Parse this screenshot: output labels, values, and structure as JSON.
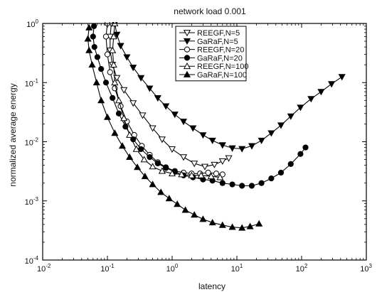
{
  "chart_data": {
    "type": "line",
    "title": "network load 0.001",
    "xlabel": "latency",
    "ylabel": "normalized average energy",
    "x_scale": "log",
    "y_scale": "log",
    "xlim": [
      0.01,
      1000
    ],
    "ylim": [
      0.0001,
      1
    ],
    "x_ticks": [
      {
        "base": "10",
        "exp": "-2",
        "value": 0.01
      },
      {
        "base": "10",
        "exp": "-1",
        "value": 0.1
      },
      {
        "base": "10",
        "exp": "0",
        "value": 1
      },
      {
        "base": "10",
        "exp": "1",
        "value": 10
      },
      {
        "base": "10",
        "exp": "2",
        "value": 100
      },
      {
        "base": "10",
        "exp": "3",
        "value": 1000
      }
    ],
    "y_ticks": [
      {
        "base": "10",
        "exp": "-4",
        "value": 0.0001
      },
      {
        "base": "10",
        "exp": "-3",
        "value": 0.001
      },
      {
        "base": "10",
        "exp": "-2",
        "value": 0.01
      },
      {
        "base": "10",
        "exp": "-1",
        "value": 0.1
      },
      {
        "base": "10",
        "exp": "0",
        "value": 1
      }
    ],
    "grid": false,
    "legend_position": "top-center",
    "series": [
      {
        "name": "REEGF,N=5",
        "marker": "triangle-down-open",
        "points": [
          [
            0.115,
            1.0
          ],
          [
            0.11,
            0.6
          ],
          [
            0.11,
            0.35
          ],
          [
            0.12,
            0.2
          ],
          [
            0.14,
            0.12
          ],
          [
            0.18,
            0.075
          ],
          [
            0.25,
            0.045
          ],
          [
            0.35,
            0.028
          ],
          [
            0.5,
            0.017
          ],
          [
            0.7,
            0.011
          ],
          [
            1.0,
            0.0075
          ],
          [
            1.5,
            0.0055
          ],
          [
            2.2,
            0.0043
          ],
          [
            3.2,
            0.0038
          ],
          [
            4.5,
            0.0041
          ],
          [
            6.0,
            0.0047
          ],
          [
            7.5,
            0.0053
          ]
        ]
      },
      {
        "name": "GaRaF,N=5",
        "marker": "triangle-down-filled",
        "points": [
          [
            0.13,
            1.0
          ],
          [
            0.14,
            0.65
          ],
          [
            0.16,
            0.42
          ],
          [
            0.2,
            0.27
          ],
          [
            0.25,
            0.18
          ],
          [
            0.33,
            0.12
          ],
          [
            0.45,
            0.08
          ],
          [
            0.6,
            0.055
          ],
          [
            0.8,
            0.04
          ],
          [
            1.1,
            0.029
          ],
          [
            1.5,
            0.022
          ],
          [
            2.1,
            0.017
          ],
          [
            3.0,
            0.013
          ],
          [
            4.2,
            0.0105
          ],
          [
            6.0,
            0.0088
          ],
          [
            8.5,
            0.0078
          ],
          [
            12,
            0.0076
          ],
          [
            17,
            0.0085
          ],
          [
            24,
            0.0105
          ],
          [
            34,
            0.014
          ],
          [
            48,
            0.019
          ],
          [
            68,
            0.027
          ],
          [
            96,
            0.038
          ],
          [
            140,
            0.053
          ],
          [
            200,
            0.07
          ],
          [
            290,
            0.095
          ],
          [
            420,
            0.125
          ]
        ]
      },
      {
        "name": "REEGF,N=20",
        "marker": "circle-open",
        "points": [
          [
            0.1,
            1.0
          ],
          [
            0.095,
            0.6
          ],
          [
            0.1,
            0.3
          ],
          [
            0.11,
            0.15
          ],
          [
            0.13,
            0.08
          ],
          [
            0.16,
            0.04
          ],
          [
            0.2,
            0.022
          ],
          [
            0.26,
            0.013
          ],
          [
            0.34,
            0.0085
          ],
          [
            0.45,
            0.006
          ],
          [
            0.6,
            0.0045
          ],
          [
            0.8,
            0.0037
          ],
          [
            1.1,
            0.0032
          ],
          [
            1.5,
            0.003
          ],
          [
            2.0,
            0.0029
          ],
          [
            2.7,
            0.0029
          ],
          [
            3.6,
            0.003
          ],
          [
            4.8,
            0.0029
          ],
          [
            6.0,
            0.0028
          ]
        ]
      },
      {
        "name": "GaRaF,N=20",
        "marker": "circle-filled",
        "points": [
          [
            0.062,
            0.9
          ],
          [
            0.06,
            0.6
          ],
          [
            0.063,
            0.4
          ],
          [
            0.07,
            0.27
          ],
          [
            0.08,
            0.17
          ],
          [
            0.095,
            0.1
          ],
          [
            0.12,
            0.055
          ],
          [
            0.15,
            0.03
          ],
          [
            0.19,
            0.018
          ],
          [
            0.25,
            0.011
          ],
          [
            0.33,
            0.0075
          ],
          [
            0.45,
            0.0055
          ],
          [
            0.6,
            0.0043
          ],
          [
            0.8,
            0.0036
          ],
          [
            1.1,
            0.0031
          ],
          [
            1.5,
            0.0027
          ],
          [
            2.1,
            0.0025
          ],
          [
            3.0,
            0.0023
          ],
          [
            4.2,
            0.0022
          ],
          [
            6.0,
            0.002
          ],
          [
            8.5,
            0.0019
          ],
          [
            12,
            0.0018
          ],
          [
            17,
            0.0018
          ],
          [
            24,
            0.002
          ],
          [
            34,
            0.0024
          ],
          [
            48,
            0.003
          ],
          [
            68,
            0.0042
          ],
          [
            96,
            0.0062
          ],
          [
            115,
            0.008
          ]
        ]
      },
      {
        "name": "REEGF,N=100",
        "marker": "triangle-up-open",
        "points": [
          [
            0.13,
            1.0
          ],
          [
            0.125,
            0.6
          ],
          [
            0.12,
            0.35
          ],
          [
            0.125,
            0.2
          ],
          [
            0.13,
            0.1
          ],
          [
            0.15,
            0.05
          ],
          [
            0.18,
            0.025
          ],
          [
            0.22,
            0.013
          ],
          [
            0.28,
            0.0075
          ],
          [
            0.37,
            0.005
          ],
          [
            0.5,
            0.0038
          ],
          [
            0.7,
            0.0032
          ],
          [
            1.0,
            0.0029
          ],
          [
            1.4,
            0.0028
          ],
          [
            2.0,
            0.0027
          ],
          [
            2.8,
            0.0027
          ],
          [
            4.0,
            0.0026
          ],
          [
            5.5,
            0.0025
          ]
        ]
      },
      {
        "name": "GaRaF,N=100",
        "marker": "triangle-up-filled",
        "points": [
          [
            0.052,
            0.85
          ],
          [
            0.05,
            0.55
          ],
          [
            0.052,
            0.35
          ],
          [
            0.058,
            0.2
          ],
          [
            0.068,
            0.1
          ],
          [
            0.08,
            0.05
          ],
          [
            0.1,
            0.026
          ],
          [
            0.13,
            0.014
          ],
          [
            0.17,
            0.0085
          ],
          [
            0.22,
            0.0055
          ],
          [
            0.29,
            0.0037
          ],
          [
            0.38,
            0.0026
          ],
          [
            0.5,
            0.0019
          ],
          [
            0.67,
            0.0014
          ],
          [
            0.9,
            0.0011
          ],
          [
            1.2,
            0.00088
          ],
          [
            1.6,
            0.0007
          ],
          [
            2.2,
            0.00058
          ],
          [
            3.0,
            0.00049
          ],
          [
            4.2,
            0.00043
          ],
          [
            6.0,
            0.00039
          ],
          [
            8.5,
            0.00036
          ],
          [
            12,
            0.00035
          ],
          [
            16,
            0.00037
          ],
          [
            22,
            0.00041
          ]
        ]
      }
    ]
  }
}
